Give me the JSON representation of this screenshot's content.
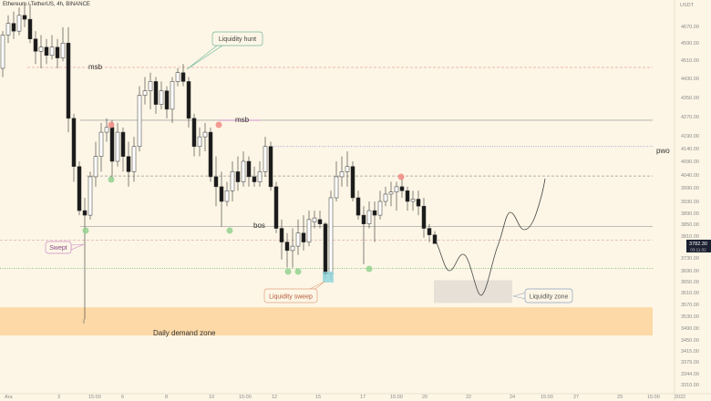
{
  "header": {
    "symbol_title": "Ethereum / TetherUS, 4h, BINANCE"
  },
  "colors": {
    "background": "#fdf6e6",
    "bull_candle": "#ffffff",
    "bear_candle": "#1a1a1a",
    "demand_zone": "#fcd9a6",
    "liquidity_zone": "#e6e0d6",
    "dot_red": "#f28b82",
    "dot_green": "#93d18f",
    "sweep_highlight": "#8fd4dc"
  },
  "chart_data": {
    "type": "candlestick",
    "title": "Ethereum / TetherUS, 4h, BINANCE",
    "y_unit": "USDT",
    "y_ticks": [
      4670,
      4590,
      4510,
      4430,
      4350,
      4270,
      4190,
      4140,
      4090,
      4040,
      3990,
      3930,
      3890,
      3850,
      3810,
      3730,
      3690,
      3650,
      3610,
      3570,
      3530,
      3490,
      3450,
      3415,
      3379,
      3344,
      3310
    ],
    "y_tick_labels": [
      "4670.00",
      "4590.00",
      "4510.00",
      "4430.00",
      "4350.00",
      "4270.00",
      "4190.00",
      "4140.00",
      "4090.00",
      "4040.00",
      "3990.00",
      "3930.00",
      "3890.00",
      "3850.00",
      "3810.00",
      "3730.00",
      "3690.00",
      "3650.00",
      "3610.00",
      "3570.00",
      "3530.00",
      "3490.00",
      "3450.00",
      "3415.00",
      "3379.00",
      "3344.00",
      "3310.00"
    ],
    "x_tick_labels": [
      "Ara",
      "3",
      "15:00",
      "6",
      "8",
      "10",
      "15:00",
      "12",
      "15",
      "17",
      "15:00",
      "20",
      "22",
      "24",
      "15:00",
      "27",
      "29",
      "15:00",
      "2022"
    ],
    "current_price": "3782.30",
    "countdown": "03:11:32",
    "ohlc": [
      [
        4474,
        4647,
        4436,
        4628
      ],
      [
        4628,
        4724,
        4589,
        4685
      ],
      [
        4685,
        4743,
        4609,
        4647
      ],
      [
        4647,
        4762,
        4628,
        4724
      ],
      [
        4724,
        4781,
        4666,
        4705
      ],
      [
        4705,
        4781,
        4589,
        4609
      ],
      [
        4609,
        4647,
        4493,
        4551
      ],
      [
        4551,
        4628,
        4474,
        4570
      ],
      [
        4570,
        4609,
        4493,
        4532
      ],
      [
        4532,
        4628,
        4513,
        4570
      ],
      [
        4570,
        4609,
        4474,
        4520
      ],
      [
        4520,
        4666,
        4505,
        4589
      ],
      [
        4589,
        4666,
        4205,
        4263
      ],
      [
        4263,
        4282,
        4013,
        4071
      ],
      [
        4071,
        4090,
        3883,
        3899
      ],
      [
        3899,
        3946,
        3520,
        3883
      ],
      [
        3883,
        4052,
        3867,
        4033
      ],
      [
        4033,
        4167,
        3994,
        4109
      ],
      [
        4109,
        4244,
        4052,
        4205
      ],
      [
        4205,
        4263,
        4167,
        4225
      ],
      [
        4225,
        4255,
        4025,
        4090
      ],
      [
        4090,
        4244,
        4071,
        4205
      ],
      [
        4205,
        4225,
        4052,
        4109
      ],
      [
        4109,
        4167,
        3994,
        4052
      ],
      [
        4052,
        4186,
        4013,
        4148
      ],
      [
        4148,
        4397,
        4129,
        4359
      ],
      [
        4359,
        4436,
        4321,
        4378
      ],
      [
        4378,
        4455,
        4301,
        4417
      ],
      [
        4417,
        4436,
        4282,
        4321
      ],
      [
        4321,
        4417,
        4301,
        4378
      ],
      [
        4378,
        4397,
        4263,
        4301
      ],
      [
        4301,
        4436,
        4244,
        4417
      ],
      [
        4417,
        4474,
        4397,
        4455
      ],
      [
        4455,
        4493,
        4397,
        4417
      ],
      [
        4417,
        4436,
        4225,
        4263
      ],
      [
        4263,
        4282,
        4109,
        4148
      ],
      [
        4148,
        4225,
        4109,
        4186
      ],
      [
        4186,
        4244,
        4129,
        4205
      ],
      [
        4205,
        4225,
        4013,
        4033
      ],
      [
        4033,
        4109,
        3914,
        3994
      ],
      [
        3994,
        4052,
        3842,
        3930
      ],
      [
        3930,
        4013,
        3914,
        3977
      ],
      [
        3977,
        4090,
        3930,
        4052
      ],
      [
        4052,
        4109,
        3977,
        4013
      ],
      [
        4013,
        4129,
        3994,
        4090
      ],
      [
        4090,
        4109,
        3994,
        4033
      ],
      [
        4033,
        4071,
        3994,
        4013
      ],
      [
        4013,
        4090,
        3994,
        4052
      ],
      [
        4052,
        4186,
        4033,
        4148
      ],
      [
        4148,
        4167,
        3977,
        3994
      ],
      [
        3994,
        4013,
        3820,
        3836
      ],
      [
        3836,
        3867,
        3725,
        3788
      ],
      [
        3788,
        3820,
        3700,
        3757
      ],
      [
        3757,
        3836,
        3700,
        3773
      ],
      [
        3773,
        3867,
        3741,
        3820
      ],
      [
        3820,
        3883,
        3757,
        3788
      ],
      [
        3788,
        3899,
        3773,
        3867
      ],
      [
        3858,
        3899,
        3836,
        3873
      ],
      [
        3867,
        3899,
        3836,
        3851
      ],
      [
        3851,
        3858,
        3662,
        3678
      ],
      [
        3678,
        3977,
        3656,
        3946
      ],
      [
        3946,
        4090,
        3930,
        4033
      ],
      [
        4033,
        4109,
        3994,
        4052
      ],
      [
        4052,
        4129,
        3994,
        4071
      ],
      [
        4071,
        4090,
        3930,
        3946
      ],
      [
        3946,
        3977,
        3867,
        3883
      ],
      [
        3883,
        3914,
        3710,
        3851
      ],
      [
        3851,
        3930,
        3836,
        3899
      ],
      [
        3899,
        3930,
        3788,
        3883
      ],
      [
        3883,
        3977,
        3867,
        3930
      ],
      [
        3930,
        3994,
        3914,
        3962
      ],
      [
        3962,
        4013,
        3914,
        3971
      ],
      [
        3971,
        4013,
        3899,
        3994
      ],
      [
        3994,
        4033,
        3946,
        3977
      ],
      [
        3977,
        3994,
        3899,
        3930
      ],
      [
        3930,
        3977,
        3899,
        3940
      ],
      [
        3940,
        3977,
        3883,
        3914
      ],
      [
        3914,
        3946,
        3804,
        3836
      ],
      [
        3836,
        3851,
        3788,
        3814
      ],
      [
        3814,
        3826,
        3783,
        3782.3
      ]
    ],
    "levels": [
      {
        "label": "msb",
        "price": 4478,
        "style": "dashed",
        "color": "#e8a0a0"
      },
      {
        "label": "msb",
        "price": 4255,
        "style": "solid",
        "color": "#aaaaaa"
      },
      {
        "label": "pwo",
        "price": 4148,
        "style": "dotted",
        "color": "#8a8ad8"
      },
      {
        "label": "",
        "price": 4036,
        "style": "dashed",
        "color": "#999999"
      },
      {
        "label": "bos",
        "price": 3842,
        "style": "solid",
        "color": "#aaaaaa"
      },
      {
        "label": "",
        "price": 3795,
        "style": "dashed",
        "color": "#e0b0b0"
      },
      {
        "label": "",
        "price": 3697,
        "style": "dotted",
        "color": "#6fbf6f"
      }
    ],
    "zones": [
      {
        "label": "Daily demand zone",
        "top": 3560,
        "bottom": 3465
      },
      {
        "label": "Liquidity zone",
        "top": 3655,
        "bottom": 3575
      }
    ],
    "annotations": [
      "Liquidity hunt",
      "Swept",
      "Liquidity sweep"
    ]
  }
}
